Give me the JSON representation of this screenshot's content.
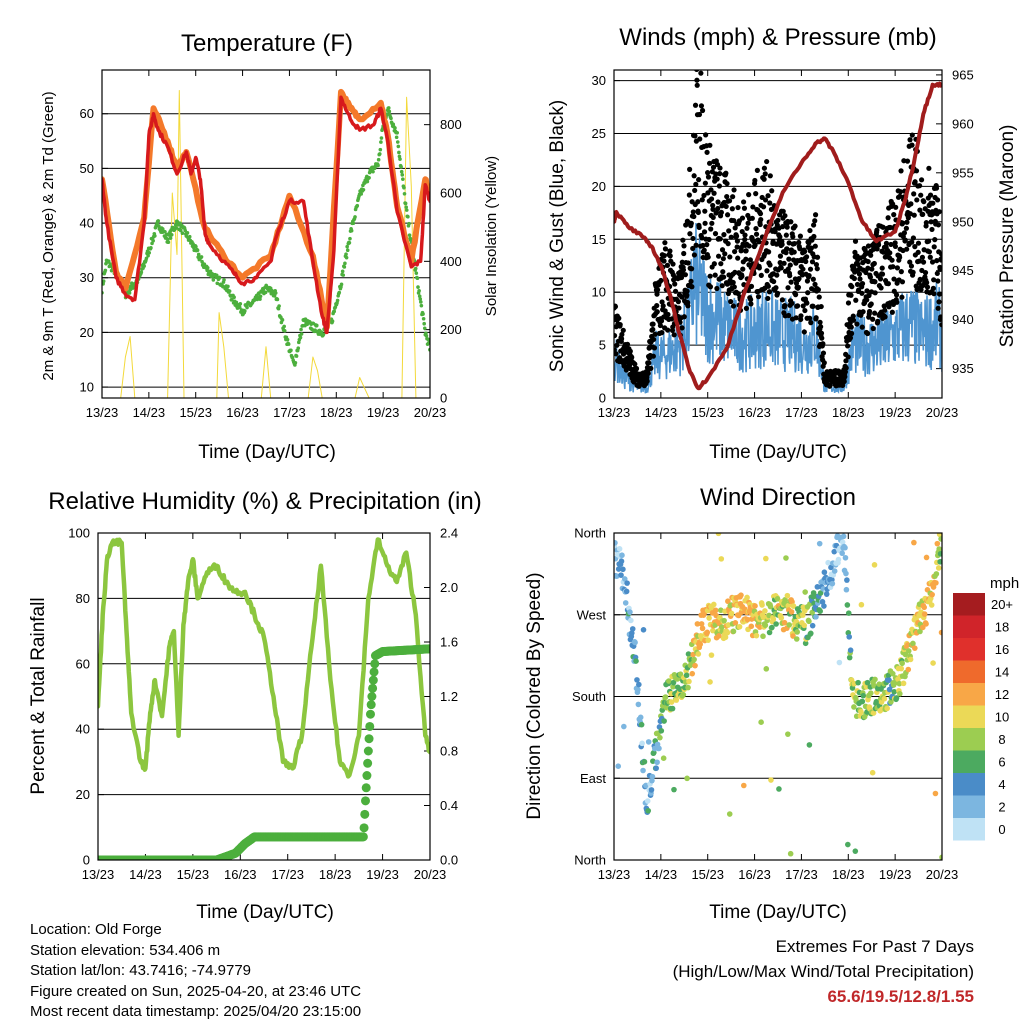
{
  "panels": {
    "temperature": {
      "title": "Temperature (F)",
      "xlabel": "Time (Day/UTC)",
      "ylabel_left": "2m & 9m T (Red, Orange) & 2m Td (Green)",
      "ylabel_right": "Solar Insolation (Yellow)"
    },
    "winds": {
      "title": "Winds (mph) & Pressure (mb)",
      "xlabel": "Time (Day/UTC)",
      "ylabel_left": "Sonic Wind & Gust (Blue, Black)",
      "ylabel_right": "Station Pressure (Maroon)"
    },
    "humidity": {
      "title": "Relative Humidity (%) & Precipitation (in)",
      "xlabel": "Time (Day/UTC)",
      "ylabel_left": "Percent & Total Rainfall"
    },
    "direction": {
      "title": "Wind Direction",
      "xlabel": "Time (Day/UTC)",
      "ylabel_left": "Direction (Colored By Speed)",
      "legend_title": "mph",
      "legend_labels": [
        "20+",
        "18",
        "16",
        "14",
        "12",
        "10",
        "8",
        "6",
        "4",
        "2",
        "0"
      ],
      "legend_colors": [
        "#a51c1f",
        "#d0242a",
        "#e0302c",
        "#ef6a2c",
        "#f8a747",
        "#ebd957",
        "#9ccd51",
        "#4caa60",
        "#4a8cc8",
        "#7cb6e0",
        "#bfe2f5"
      ]
    }
  },
  "footer": {
    "location": "Location: Old Forge",
    "elevation": "Station elevation: 534.406 m",
    "latlon": "Station lat/lon: 43.7416; -74.9779",
    "created": "Figure created on Sun, 2025-04-20, at 23:46 UTC",
    "latest": "Most recent data timestamp: 2025/04/20 23:15:00",
    "extremes_title": "Extremes For Past 7 Days",
    "extremes_sub": "(High/Low/Max Wind/Total Precipitation)",
    "extremes_values": "65.6/19.5/12.8/1.55"
  },
  "colors": {
    "temp_2m": "#d7191c",
    "temp_9m": "#f4792a",
    "dewpoint": "#4caf3d",
    "solar": "#f3d93a",
    "wind": "#4f95d0",
    "gust": "#000000",
    "pressure": "#a01c1c",
    "rh": "#8cc63f",
    "precip": "#4caf3d"
  },
  "chart_data": [
    {
      "type": "line",
      "title": "Temperature (F)",
      "xlabel": "Time (Day/UTC)",
      "ylabel": "2m & 9m T (Red, Orange) & 2m Td (Green)",
      "ylabel_right": "Solar Insolation (Yellow)",
      "x_ticks": [
        "13/23",
        "14/23",
        "15/23",
        "16/23",
        "17/23",
        "18/23",
        "19/23",
        "20/23"
      ],
      "xlim": [
        0,
        7
      ],
      "ylim": [
        8,
        68
      ],
      "y_ticks": [
        10,
        20,
        30,
        40,
        50,
        60
      ],
      "ylim_right": [
        0,
        960
      ],
      "y_ticks_right": [
        0,
        200,
        400,
        600,
        800
      ],
      "grid": "horizontal",
      "series": [
        {
          "name": "2m T",
          "axis": "left",
          "x": [
            0,
            0.1,
            0.3,
            0.5,
            0.7,
            0.9,
            1.0,
            1.1,
            1.2,
            1.4,
            1.6,
            1.8,
            1.9,
            2.0,
            2.1,
            2.2,
            2.3,
            2.6,
            2.8,
            3.0,
            3.3,
            3.6,
            3.7,
            4.0,
            4.3,
            4.5,
            4.7,
            4.8,
            4.95,
            5.1,
            5.3,
            5.5,
            5.8,
            5.95,
            6.1,
            6.3,
            6.6,
            6.8,
            6.9,
            7.0
          ],
          "y": [
            48,
            40,
            30,
            27,
            26,
            40,
            56,
            60,
            57,
            54,
            49,
            53,
            49,
            52,
            48,
            38,
            36,
            33,
            31,
            29,
            30,
            33,
            37,
            44,
            44,
            33,
            23,
            20,
            35,
            63,
            59,
            57,
            58,
            61,
            55,
            42,
            32,
            33,
            47,
            44
          ]
        },
        {
          "name": "9m T",
          "axis": "left",
          "x": [
            0,
            0.3,
            0.5,
            0.9,
            1.1,
            1.4,
            1.6,
            1.8,
            2.2,
            2.6,
            3.0,
            3.6,
            4.0,
            4.5,
            4.8,
            5.1,
            5.3,
            5.5,
            5.95,
            6.1,
            6.3,
            6.6,
            6.9,
            7.0
          ],
          "y": [
            48,
            31,
            28,
            41,
            61,
            55,
            50,
            53,
            39,
            34,
            30,
            34,
            45,
            34,
            21,
            64,
            61,
            59,
            62,
            56,
            43,
            33,
            48,
            45
          ]
        },
        {
          "name": "2m Td",
          "axis": "left",
          "x": [
            0,
            0.1,
            0.3,
            0.5,
            0.8,
            1.0,
            1.2,
            1.4,
            1.6,
            1.8,
            2.0,
            2.2,
            2.4,
            2.6,
            2.8,
            3.0,
            3.3,
            3.5,
            3.7,
            3.9,
            4.1,
            4.3,
            4.5,
            4.7,
            4.9,
            5.1,
            5.3,
            5.5,
            5.7,
            5.9,
            6.0,
            6.1,
            6.3,
            6.5,
            6.7,
            6.9,
            7.0
          ],
          "y": [
            28,
            33,
            31,
            27,
            30,
            35,
            40,
            37,
            40,
            38,
            35,
            32,
            30,
            29,
            26,
            24,
            26,
            28,
            27,
            20,
            14,
            22,
            21,
            20,
            22,
            29,
            38,
            45,
            49,
            51,
            58,
            61,
            56,
            42,
            31,
            20,
            17
          ]
        },
        {
          "name": "Solar Insolation",
          "axis": "right",
          "x": [
            0.4,
            0.5,
            0.6,
            0.7,
            1.4,
            1.5,
            1.6,
            1.65,
            1.75,
            2.45,
            2.5,
            2.6,
            2.7,
            3.4,
            3.5,
            3.6,
            4.4,
            4.5,
            4.6,
            4.7,
            5.4,
            5.5,
            5.6,
            5.7,
            6.4,
            6.5,
            6.6,
            6.7
          ],
          "y": [
            0,
            120,
            180,
            0,
            0,
            600,
            420,
            900,
            0,
            0,
            250,
            150,
            0,
            0,
            150,
            0,
            0,
            120,
            80,
            0,
            0,
            60,
            30,
            0,
            0,
            880,
            620,
            0
          ]
        }
      ]
    },
    {
      "type": "scatter",
      "title": "Winds (mph) & Pressure (mb)",
      "xlabel": "Time (Day/UTC)",
      "ylabel": "Sonic Wind & Gust (Blue, Black)",
      "ylabel_right": "Station Pressure (Maroon)",
      "x_ticks": [
        "13/23",
        "14/23",
        "15/23",
        "16/23",
        "17/23",
        "18/23",
        "19/23",
        "20/23"
      ],
      "xlim": [
        0,
        7
      ],
      "ylim": [
        0,
        31
      ],
      "y_ticks": [
        0,
        5,
        10,
        15,
        20,
        25,
        30
      ],
      "ylim_right": [
        932,
        965.5
      ],
      "y_ticks_right": [
        935,
        940,
        945,
        950,
        955,
        960,
        965
      ],
      "grid": "horizontal",
      "series": [
        {
          "name": "Sonic Wind",
          "axis": "left",
          "x": [
            0,
            0.2,
            0.5,
            0.7,
            0.9,
            1.1,
            1.4,
            1.6,
            1.7,
            2.0,
            2.3,
            2.6,
            2.9,
            3.2,
            3.5,
            3.8,
            4.1,
            4.3,
            4.5,
            4.7,
            4.9,
            5.1,
            5.4,
            5.7,
            6.0,
            6.3,
            6.6,
            6.9,
            7.0
          ],
          "y": [
            4,
            2,
            1,
            1,
            4,
            4,
            5,
            7,
            11,
            8,
            7,
            6,
            6,
            7,
            6,
            6,
            5,
            6,
            1,
            1,
            1,
            5,
            5,
            5,
            6,
            7,
            6,
            7,
            6
          ]
        },
        {
          "name": "Gust",
          "axis": "left",
          "x": [
            0,
            0.2,
            0.5,
            0.7,
            0.9,
            1.1,
            1.4,
            1.7,
            1.8,
            2.0,
            2.3,
            2.6,
            2.9,
            3.2,
            3.5,
            3.8,
            4.1,
            4.3,
            4.5,
            4.7,
            4.9,
            5.1,
            5.4,
            5.7,
            6.0,
            6.2,
            6.4,
            6.6,
            6.8,
            7.0
          ],
          "y": [
            7,
            5,
            2,
            2,
            9,
            12,
            9,
            20,
            27,
            19,
            17,
            15,
            15,
            18,
            14,
            13,
            11,
            14,
            2,
            2,
            2,
            12,
            11,
            13,
            15,
            18,
            20,
            15,
            18,
            12
          ]
        },
        {
          "name": "Station Pressure",
          "axis": "right",
          "x": [
            0,
            0.05,
            0.3,
            0.6,
            0.8,
            1.0,
            1.2,
            1.4,
            1.6,
            1.8,
            2.0,
            2.4,
            2.8,
            3.2,
            3.6,
            4.0,
            4.3,
            4.5,
            4.7,
            5.0,
            5.3,
            5.6,
            6.0,
            6.2,
            6.4,
            6.6,
            6.8,
            7.0
          ],
          "y": [
            950,
            951,
            949.5,
            948.5,
            947.5,
            945.5,
            942.5,
            938.5,
            935,
            933,
            934,
            937,
            943,
            948,
            953,
            956,
            958,
            958.5,
            957,
            954,
            950,
            948,
            949,
            952,
            956,
            961,
            964,
            964
          ]
        }
      ]
    },
    {
      "type": "line",
      "title": "Relative Humidity (%) & Precipitation (in)",
      "xlabel": "Time (Day/UTC)",
      "ylabel": "Percent & Total Rainfall",
      "x_ticks": [
        "13/23",
        "14/23",
        "15/23",
        "16/23",
        "17/23",
        "18/23",
        "19/23",
        "20/23"
      ],
      "xlim": [
        0,
        7
      ],
      "ylim": [
        0,
        100
      ],
      "y_ticks": [
        0,
        20,
        40,
        60,
        80,
        100
      ],
      "ylim_right": [
        0,
        2.4
      ],
      "y_ticks_right": [
        0.0,
        0.4,
        0.8,
        1.2,
        1.6,
        2.0,
        2.4
      ],
      "grid": "horizontal",
      "series": [
        {
          "name": "RH",
          "axis": "left",
          "x": [
            0,
            0.1,
            0.2,
            0.3,
            0.5,
            0.6,
            0.7,
            0.9,
            1.0,
            1.1,
            1.2,
            1.35,
            1.5,
            1.6,
            1.7,
            1.8,
            1.9,
            2.0,
            2.1,
            2.3,
            2.5,
            2.7,
            2.9,
            3.1,
            3.3,
            3.5,
            3.7,
            3.9,
            4.1,
            4.3,
            4.5,
            4.7,
            4.9,
            5.1,
            5.3,
            5.5,
            5.7,
            5.9,
            6.1,
            6.3,
            6.5,
            6.7,
            6.9,
            7.0
          ],
          "y": [
            47,
            75,
            93,
            97,
            97,
            70,
            45,
            30,
            28,
            45,
            55,
            44,
            65,
            70,
            38,
            72,
            85,
            92,
            80,
            88,
            90,
            85,
            82,
            82,
            75,
            68,
            50,
            30,
            28,
            38,
            65,
            90,
            55,
            30,
            26,
            38,
            80,
            98,
            90,
            85,
            94,
            75,
            38,
            33
          ]
        },
        {
          "name": "Total Rainfall",
          "axis": "right",
          "x": [
            0,
            2.5,
            2.9,
            3.1,
            3.3,
            5.0,
            5.3,
            5.6,
            5.65,
            5.7,
            5.75,
            5.8,
            5.85,
            6.0,
            7.0
          ],
          "y": [
            0,
            0,
            0.05,
            0.12,
            0.17,
            0.17,
            0.17,
            0.17,
            0.5,
            0.8,
            1.1,
            1.3,
            1.5,
            1.53,
            1.55
          ]
        }
      ]
    },
    {
      "type": "scatter",
      "title": "Wind Direction",
      "xlabel": "Time (Day/UTC)",
      "ylabel": "Direction (Colored By Speed)",
      "x_ticks": [
        "13/23",
        "14/23",
        "15/23",
        "16/23",
        "17/23",
        "18/23",
        "19/23",
        "20/23"
      ],
      "xlim": [
        0,
        7
      ],
      "y_ticks": [
        "North",
        "East",
        "South",
        "West",
        "North"
      ],
      "y_tick_values": [
        0,
        90,
        180,
        270,
        360
      ],
      "ylim": [
        0,
        360
      ],
      "grid": "horizontal",
      "legend": {
        "title": "mph",
        "position": "right"
      },
      "series": [
        {
          "name": "Direction",
          "x": [
            0.1,
            0.3,
            0.5,
            0.7,
            0.9,
            1.0,
            1.1,
            1.3,
            1.5,
            1.7,
            1.9,
            2.1,
            2.3,
            2.5,
            2.7,
            2.9,
            3.1,
            3.3,
            3.5,
            3.7,
            3.9,
            4.1,
            4.3,
            4.5,
            4.7,
            4.9,
            5.1,
            5.3,
            5.5,
            5.7,
            5.9,
            6.1,
            6.3,
            6.5,
            6.7,
            6.9,
            7.0
          ],
          "y": [
            330,
            280,
            200,
            60,
            120,
            150,
            175,
            185,
            195,
            230,
            255,
            265,
            262,
            270,
            275,
            268,
            262,
            268,
            272,
            270,
            262,
            258,
            280,
            300,
            330,
            350,
            180,
            175,
            180,
            178,
            190,
            200,
            230,
            260,
            280,
            330,
            350
          ],
          "speed": [
            1,
            1,
            2,
            1,
            2,
            3,
            4,
            4,
            4,
            5,
            6,
            6,
            5,
            5,
            6,
            6,
            5,
            4,
            4,
            5,
            4,
            4,
            3,
            1,
            1,
            1,
            4,
            4,
            4,
            4,
            3,
            4,
            5,
            5,
            6,
            5,
            4
          ]
        }
      ]
    }
  ]
}
